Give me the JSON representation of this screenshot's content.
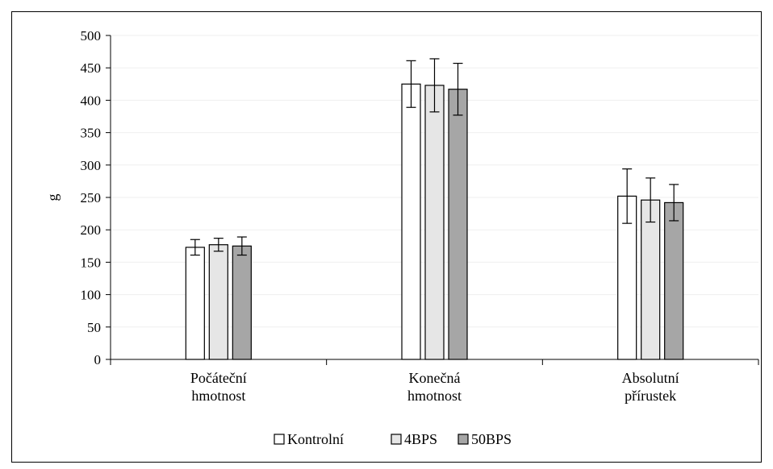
{
  "chart_data": {
    "type": "bar",
    "ylabel": "g",
    "xlabel": "",
    "ylim": [
      0,
      500
    ],
    "yticks": [
      0,
      50,
      100,
      150,
      200,
      250,
      300,
      350,
      400,
      450,
      500
    ],
    "grid": true,
    "legend_position": "bottom",
    "categories": [
      [
        "Počáteční",
        "hmotnost"
      ],
      [
        "Konečná",
        "hmotnost"
      ],
      [
        "Absolutní",
        "přírustek"
      ]
    ],
    "series": [
      {
        "name": "Kontrolní",
        "color": "#ffffff",
        "values": [
          173,
          425,
          252
        ],
        "errors": [
          12,
          36,
          42
        ]
      },
      {
        "name": "4BPS",
        "color": "#e6e6e6",
        "values": [
          177,
          423,
          246
        ],
        "errors": [
          10,
          41,
          34
        ]
      },
      {
        "name": "50BPS",
        "color": "#a6a6a6",
        "values": [
          175,
          417,
          242
        ],
        "errors": [
          14,
          40,
          28
        ]
      }
    ]
  }
}
